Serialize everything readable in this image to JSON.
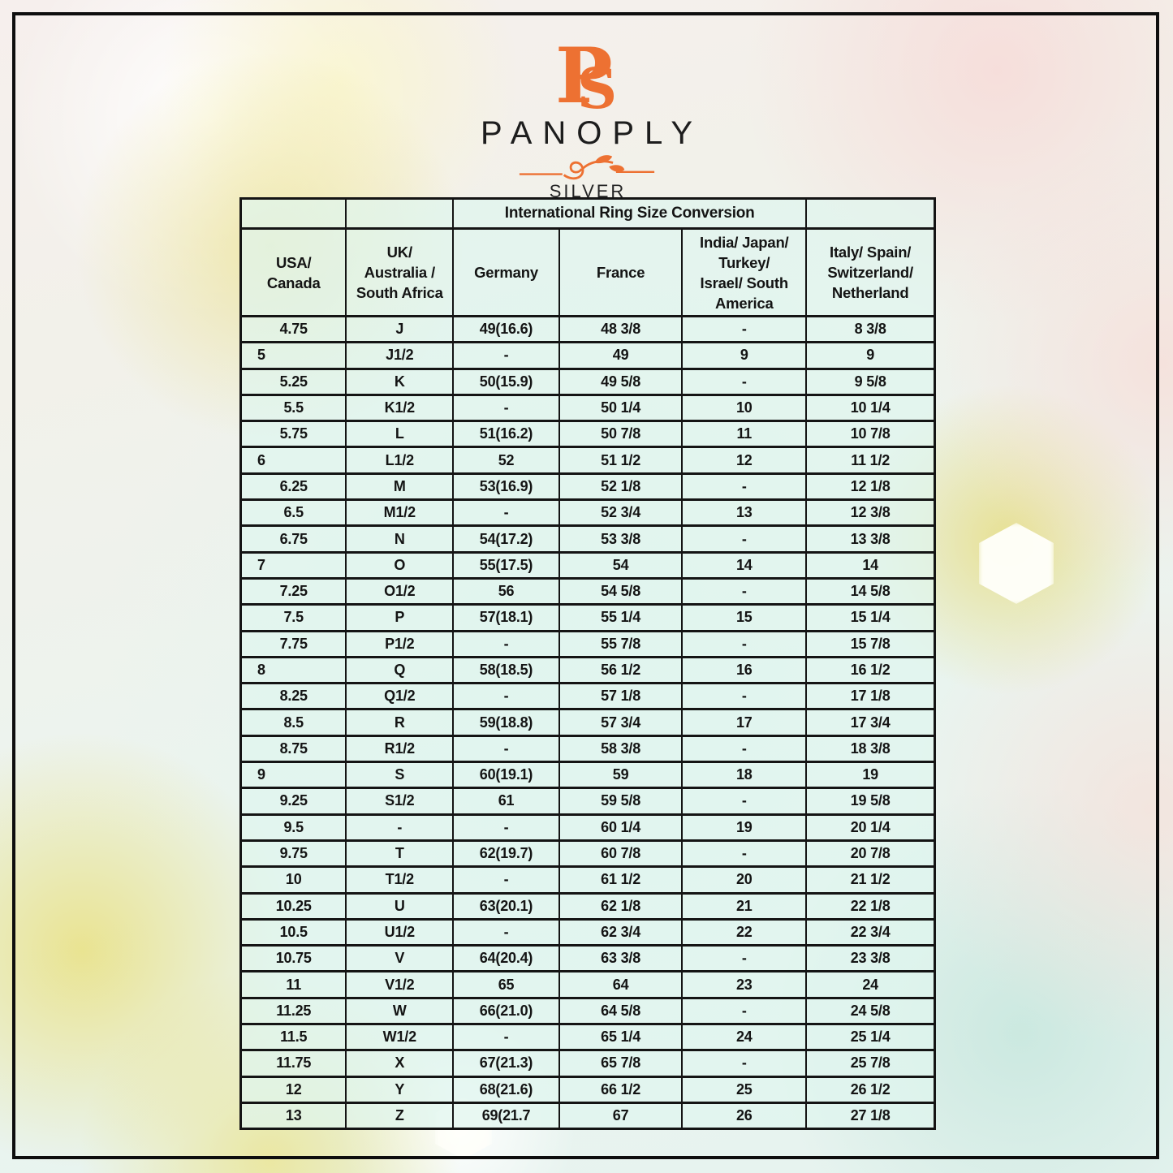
{
  "colors": {
    "accent_orange": "#ed7132",
    "table_fill": "#dff4ee",
    "line_black": "#141414"
  },
  "logo": {
    "monogram": "PS",
    "brand": "PANOPLY",
    "sub_brand": "SILVER"
  },
  "table": {
    "title": "International Ring Size Conversion",
    "columns": [
      "USA/\nCanada",
      "UK/\nAustralia /\nSouth Africa",
      "Germany",
      "France",
      "India/ Japan/\nTurkey/\nIsrael/ South\nAmerica",
      "Italy/ Spain/\nSwitzerland/\nNetherland"
    ],
    "rows": [
      [
        "4.75",
        "J",
        "49(16.6)",
        "48 3/8",
        "-",
        "8 3/8"
      ],
      [
        "5",
        "J1/2",
        "-",
        "49",
        "9",
        "9"
      ],
      [
        "5.25",
        "K",
        "50(15.9)",
        "49 5/8",
        "-",
        "9 5/8"
      ],
      [
        "5.5",
        "K1/2",
        "-",
        "50 1/4",
        "10",
        "10 1/4"
      ],
      [
        "5.75",
        "L",
        "51(16.2)",
        "50 7/8",
        "11",
        "10 7/8"
      ],
      [
        "6",
        "L1/2",
        "52",
        "51 1/2",
        "12",
        "11 1/2"
      ],
      [
        "6.25",
        "M",
        "53(16.9)",
        "52 1/8",
        "-",
        "12 1/8"
      ],
      [
        "6.5",
        "M1/2",
        "-",
        "52 3/4",
        "13",
        "12 3/8"
      ],
      [
        "6.75",
        "N",
        "54(17.2)",
        "53 3/8",
        "-",
        "13 3/8"
      ],
      [
        "7",
        "O",
        "55(17.5)",
        "54",
        "14",
        "14"
      ],
      [
        "7.25",
        "O1/2",
        "56",
        "54 5/8",
        "-",
        "14 5/8"
      ],
      [
        "7.5",
        "P",
        "57(18.1)",
        "55 1/4",
        "15",
        "15 1/4"
      ],
      [
        "7.75",
        "P1/2",
        "-",
        "55 7/8",
        "-",
        "15 7/8"
      ],
      [
        "8",
        "Q",
        "58(18.5)",
        "56 1/2",
        "16",
        "16 1/2"
      ],
      [
        "8.25",
        "Q1/2",
        "-",
        "57 1/8",
        "-",
        "17 1/8"
      ],
      [
        "8.5",
        "R",
        "59(18.8)",
        "57 3/4",
        "17",
        "17 3/4"
      ],
      [
        "8.75",
        "R1/2",
        "-",
        "58 3/8",
        "-",
        "18 3/8"
      ],
      [
        "9",
        "S",
        "60(19.1)",
        "59",
        "18",
        "19"
      ],
      [
        "9.25",
        "S1/2",
        "61",
        "59 5/8",
        "-",
        "19 5/8"
      ],
      [
        "9.5",
        "-",
        "-",
        "60 1/4",
        "19",
        "20 1/4"
      ],
      [
        "9.75",
        "T",
        "62(19.7)",
        "60 7/8",
        "-",
        "20 7/8"
      ],
      [
        "10",
        "T1/2",
        "-",
        "61 1/2",
        "20",
        "21 1/2"
      ],
      [
        "10.25",
        "U",
        "63(20.1)",
        "62 1/8",
        "21",
        "22 1/8"
      ],
      [
        "10.5",
        "U1/2",
        "-",
        "62 3/4",
        "22",
        "22 3/4"
      ],
      [
        "10.75",
        "V",
        "64(20.4)",
        "63 3/8",
        "-",
        "23 3/8"
      ],
      [
        "11",
        "V1/2",
        "65",
        "64",
        "23",
        "24"
      ],
      [
        "11.25",
        "W",
        "66(21.0)",
        "64 5/8",
        "-",
        "24 5/8"
      ],
      [
        "11.5",
        "W1/2",
        "-",
        "65 1/4",
        "24",
        "25 1/4"
      ],
      [
        "11.75",
        "X",
        "67(21.3)",
        "65 7/8",
        "-",
        "25 7/8"
      ],
      [
        "12",
        "Y",
        "68(21.6)",
        "66 1/2",
        "25",
        "26 1/2"
      ],
      [
        "13",
        "Z",
        "69(21.7",
        "67",
        "26",
        "27 1/8"
      ]
    ]
  }
}
